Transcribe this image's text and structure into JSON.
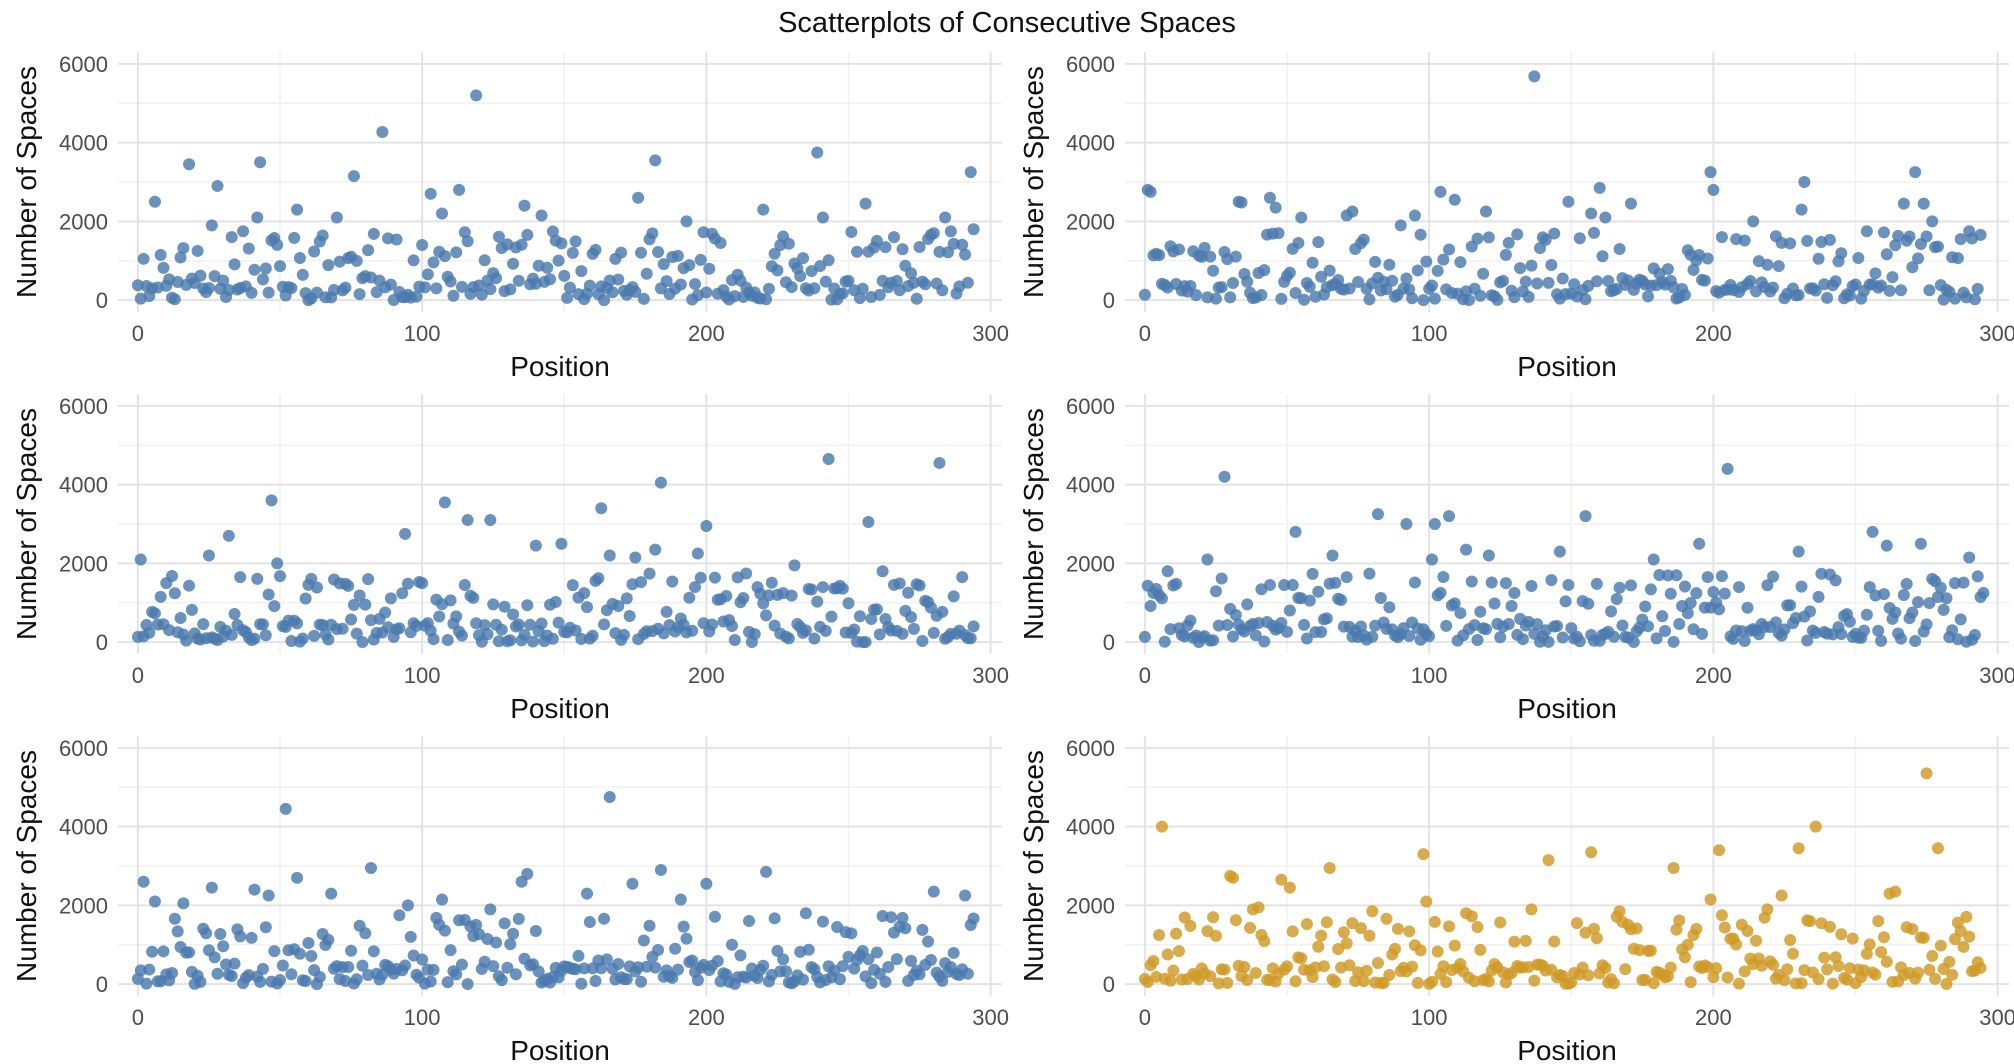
{
  "figure": {
    "title": "Scatterplots of Consecutive Spaces"
  },
  "colors": {
    "primary": "#4a7aaf",
    "highlight": "#d09a26",
    "grid_major": "#e3e3e3",
    "grid_minor": "#f1f1f1",
    "text": "#111111",
    "tick_text": "#4d4d4d"
  },
  "chart_data": [
    {
      "type": "scatter",
      "title": "",
      "xlabel": "Position",
      "ylabel": "Number of Spaces",
      "xlim": [
        -7,
        304
      ],
      "ylim": [
        -300,
        6300
      ],
      "xticks": [
        0,
        100,
        200,
        300
      ],
      "yticks": [
        0,
        2000,
        4000,
        6000
      ],
      "grid": true,
      "color": "#4a7aaf",
      "seed": 11,
      "highlights": [
        [
          0,
          380
        ],
        [
          2,
          1050
        ],
        [
          5,
          300
        ],
        [
          6,
          2500
        ],
        [
          8,
          1150
        ],
        [
          18,
          3450
        ],
        [
          19,
          550
        ],
        [
          26,
          1900
        ],
        [
          28,
          2900
        ],
        [
          33,
          1600
        ],
        [
          37,
          1750
        ],
        [
          42,
          2100
        ],
        [
          43,
          3500
        ],
        [
          56,
          2300
        ],
        [
          70,
          2100
        ],
        [
          76,
          3150
        ],
        [
          86,
          4270
        ],
        [
          100,
          1400
        ],
        [
          103,
          2700
        ],
        [
          107,
          2200
        ],
        [
          113,
          2800
        ],
        [
          119,
          5200
        ],
        [
          136,
          2400
        ],
        [
          142,
          2150
        ],
        [
          176,
          2600
        ],
        [
          182,
          3550
        ],
        [
          193,
          2000
        ],
        [
          220,
          2300
        ],
        [
          239,
          3750
        ],
        [
          241,
          2100
        ],
        [
          256,
          2450
        ],
        [
          280,
          1700
        ],
        [
          284,
          2100
        ],
        [
          293,
          3250
        ],
        [
          294,
          1800
        ]
      ]
    },
    {
      "type": "scatter",
      "title": "",
      "xlabel": "Position",
      "ylabel": "Number of Spaces",
      "xlim": [
        -7,
        304
      ],
      "ylim": [
        -300,
        6300
      ],
      "xticks": [
        0,
        100,
        200,
        300
      ],
      "yticks": [
        0,
        2000,
        4000,
        6000
      ],
      "grid": true,
      "color": "#4a7aaf",
      "seed": 22,
      "highlights": [
        [
          1,
          2800
        ],
        [
          2,
          2750
        ],
        [
          20,
          1100
        ],
        [
          33,
          2500
        ],
        [
          34,
          2480
        ],
        [
          44,
          2600
        ],
        [
          46,
          2350
        ],
        [
          55,
          2100
        ],
        [
          71,
          2150
        ],
        [
          73,
          2250
        ],
        [
          90,
          1900
        ],
        [
          95,
          2150
        ],
        [
          104,
          2750
        ],
        [
          109,
          2550
        ],
        [
          120,
          2250
        ],
        [
          127,
          1150
        ],
        [
          137,
          5680
        ],
        [
          149,
          2500
        ],
        [
          157,
          2200
        ],
        [
          160,
          2850
        ],
        [
          162,
          2100
        ],
        [
          171,
          2450
        ],
        [
          192,
          1150
        ],
        [
          199,
          3250
        ],
        [
          200,
          2800
        ],
        [
          214,
          2000
        ],
        [
          231,
          2300
        ],
        [
          232,
          3000
        ],
        [
          254,
          1750
        ],
        [
          267,
          2450
        ],
        [
          271,
          3250
        ],
        [
          274,
          2450
        ],
        [
          277,
          2000
        ],
        [
          290,
          1750
        ]
      ]
    },
    {
      "type": "scatter",
      "title": "",
      "xlabel": "Position",
      "ylabel": "Number of Spaces",
      "xlim": [
        -7,
        304
      ],
      "ylim": [
        -300,
        6300
      ],
      "xticks": [
        0,
        100,
        200,
        300
      ],
      "yticks": [
        0,
        2000,
        4000,
        6000
      ],
      "grid": true,
      "color": "#4a7aaf",
      "seed": 33,
      "highlights": [
        [
          1,
          2100
        ],
        [
          10,
          1500
        ],
        [
          25,
          2200
        ],
        [
          32,
          2700
        ],
        [
          36,
          1650
        ],
        [
          47,
          3600
        ],
        [
          49,
          2000
        ],
        [
          81,
          1600
        ],
        [
          94,
          2750
        ],
        [
          108,
          3550
        ],
        [
          116,
          3100
        ],
        [
          124,
          3100
        ],
        [
          140,
          2450
        ],
        [
          149,
          2500
        ],
        [
          163,
          3400
        ],
        [
          166,
          2200
        ],
        [
          175,
          2150
        ],
        [
          182,
          2350
        ],
        [
          184,
          4050
        ],
        [
          197,
          2250
        ],
        [
          200,
          2950
        ],
        [
          231,
          1950
        ],
        [
          236,
          1350
        ],
        [
          243,
          4650
        ],
        [
          257,
          3050
        ],
        [
          262,
          1800
        ],
        [
          277,
          1050
        ],
        [
          282,
          4550
        ],
        [
          290,
          1650
        ]
      ]
    },
    {
      "type": "scatter",
      "title": "",
      "xlabel": "Position",
      "ylabel": "Number of Spaces",
      "xlim": [
        -7,
        304
      ],
      "ylim": [
        -300,
        6300
      ],
      "xticks": [
        0,
        100,
        200,
        300
      ],
      "yticks": [
        0,
        2000,
        4000,
        6000
      ],
      "grid": true,
      "color": "#4a7aaf",
      "seed": 44,
      "highlights": [
        [
          3,
          1250
        ],
        [
          8,
          1800
        ],
        [
          22,
          2100
        ],
        [
          28,
          4200
        ],
        [
          52,
          1450
        ],
        [
          53,
          2800
        ],
        [
          66,
          2200
        ],
        [
          71,
          1650
        ],
        [
          82,
          3250
        ],
        [
          92,
          3000
        ],
        [
          101,
          2100
        ],
        [
          102,
          3000
        ],
        [
          107,
          3200
        ],
        [
          113,
          2350
        ],
        [
          121,
          2200
        ],
        [
          127,
          1500
        ],
        [
          146,
          2300
        ],
        [
          155,
          3200
        ],
        [
          179,
          2100
        ],
        [
          187,
          1700
        ],
        [
          195,
          2500
        ],
        [
          205,
          4400
        ],
        [
          230,
          2300
        ],
        [
          237,
          1150
        ],
        [
          256,
          2800
        ],
        [
          261,
          2450
        ],
        [
          273,
          2500
        ],
        [
          278,
          1550
        ],
        [
          290,
          2150
        ],
        [
          295,
          1250
        ]
      ]
    },
    {
      "type": "scatter",
      "title": "",
      "xlabel": "Position",
      "ylabel": "Number of Spaces",
      "xlim": [
        -7,
        304
      ],
      "ylim": [
        -300,
        6300
      ],
      "xticks": [
        0,
        100,
        200,
        300
      ],
      "yticks": [
        0,
        2000,
        4000,
        6000
      ],
      "grid": true,
      "color": "#4a7aaf",
      "seed": 55,
      "highlights": [
        [
          2,
          2600
        ],
        [
          6,
          2100
        ],
        [
          16,
          2050
        ],
        [
          26,
          2450
        ],
        [
          41,
          2400
        ],
        [
          46,
          2250
        ],
        [
          52,
          4450
        ],
        [
          56,
          2700
        ],
        [
          68,
          2300
        ],
        [
          82,
          2950
        ],
        [
          95,
          2000
        ],
        [
          107,
          2150
        ],
        [
          124,
          1900
        ],
        [
          135,
          2600
        ],
        [
          137,
          2800
        ],
        [
          158,
          2300
        ],
        [
          166,
          4750
        ],
        [
          174,
          2550
        ],
        [
          184,
          2900
        ],
        [
          191,
          2150
        ],
        [
          200,
          2550
        ],
        [
          221,
          2850
        ],
        [
          235,
          1800
        ],
        [
          246,
          1450
        ],
        [
          265,
          1700
        ],
        [
          280,
          2350
        ],
        [
          291,
          2250
        ]
      ]
    },
    {
      "type": "scatter",
      "title": "",
      "xlabel": "Position",
      "ylabel": "Number of Spaces",
      "xlim": [
        -7,
        304
      ],
      "ylim": [
        -300,
        6300
      ],
      "xticks": [
        0,
        100,
        200,
        300
      ],
      "yticks": [
        0,
        2000,
        4000,
        6000
      ],
      "grid": true,
      "color": "#d09a26",
      "seed": 66,
      "highlights": [
        [
          6,
          4000
        ],
        [
          30,
          2750
        ],
        [
          31,
          2700
        ],
        [
          38,
          1900
        ],
        [
          40,
          1950
        ],
        [
          48,
          2650
        ],
        [
          51,
          2450
        ],
        [
          65,
          2950
        ],
        [
          73,
          1550
        ],
        [
          80,
          1850
        ],
        [
          98,
          3300
        ],
        [
          99,
          2100
        ],
        [
          113,
          1800
        ],
        [
          117,
          1450
        ],
        [
          136,
          1900
        ],
        [
          142,
          3150
        ],
        [
          152,
          1550
        ],
        [
          157,
          3350
        ],
        [
          167,
          1850
        ],
        [
          186,
          2950
        ],
        [
          193,
          1250
        ],
        [
          199,
          2150
        ],
        [
          202,
          3400
        ],
        [
          219,
          1900
        ],
        [
          224,
          2250
        ],
        [
          230,
          3450
        ],
        [
          234,
          1600
        ],
        [
          236,
          4000
        ],
        [
          258,
          1600
        ],
        [
          262,
          2300
        ],
        [
          264,
          2350
        ],
        [
          275,
          5350
        ],
        [
          279,
          3450
        ],
        [
          287,
          1350
        ]
      ]
    }
  ]
}
